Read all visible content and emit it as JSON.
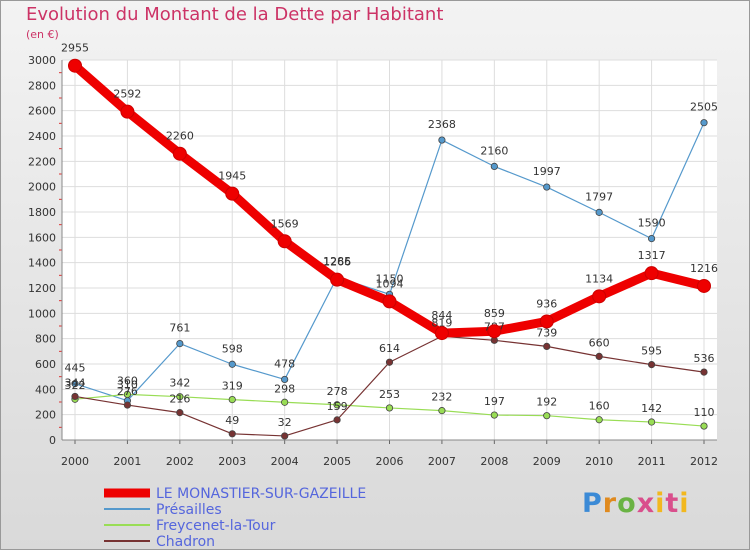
{
  "header": {
    "title": "Evolution du Montant de la Dette par Habitant",
    "unit": "(en €)"
  },
  "logo": {
    "text": "Proxiti",
    "colors": [
      "#3b8ad6",
      "#e08a1e",
      "#6ab344",
      "#d94f8c",
      "#f2b81e"
    ]
  },
  "chart_data": {
    "type": "line",
    "title": "Evolution du Montant de la Dette par Habitant",
    "ylabel": "(en €)",
    "xlabel": "",
    "x": [
      "2000",
      "2001",
      "2002",
      "2003",
      "2004",
      "2005",
      "2006",
      "2007",
      "2008",
      "2009",
      "2010",
      "2011",
      "2012"
    ],
    "yticks": [
      0,
      200,
      400,
      600,
      800,
      1000,
      1200,
      1400,
      1600,
      1800,
      2000,
      2200,
      2400,
      2600,
      2800,
      3000
    ],
    "ylim": [
      0,
      3000
    ],
    "grid": true,
    "legend_position": "bottom-left",
    "series": [
      {
        "name": "LE MONASTIER-SUR-GAZEILLE",
        "color": "#ee0000",
        "values": [
          2955,
          2592,
          2260,
          1945,
          1569,
          1266,
          1094,
          844,
          859,
          936,
          1134,
          1317,
          1216
        ]
      },
      {
        "name": "Présailles",
        "color": "#5599cc",
        "values": [
          445,
          310,
          761,
          598,
          478,
          1285,
          1150,
          2368,
          2160,
          1997,
          1797,
          1590,
          2505
        ]
      },
      {
        "name": "Freycenet-la-Tour",
        "color": "#99dd55",
        "values": [
          322,
          360,
          342,
          319,
          298,
          278,
          253,
          232,
          197,
          192,
          160,
          142,
          110
        ]
      },
      {
        "name": "Chadron",
        "color": "#773333",
        "values": [
          344,
          276,
          216,
          49,
          32,
          159,
          614,
          819,
          787,
          739,
          660,
          595,
          536
        ]
      }
    ]
  }
}
